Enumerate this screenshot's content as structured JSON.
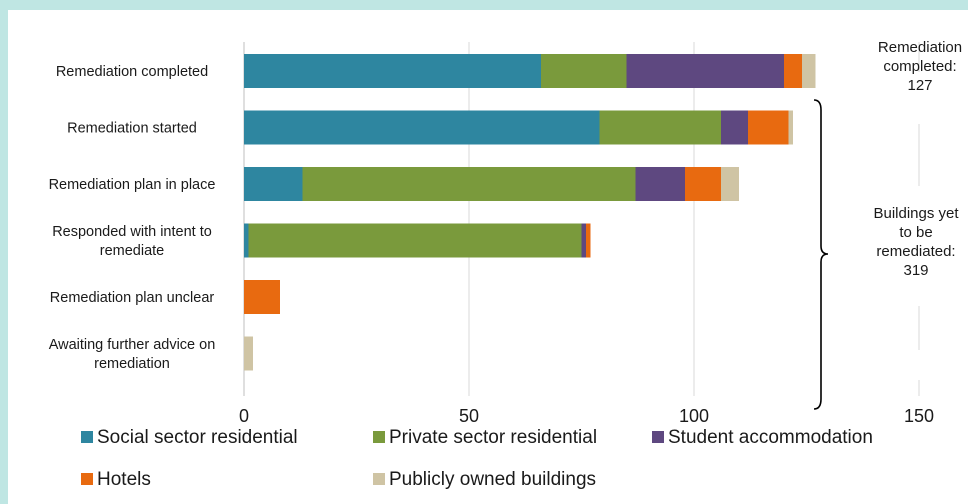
{
  "chart_data": {
    "type": "bar",
    "orientation": "horizontal",
    "stacked": true,
    "title": "",
    "xlabel": "",
    "ylabel": "",
    "xlim": [
      0,
      150
    ],
    "xticks": [
      0,
      50,
      100,
      150
    ],
    "grid": "vertical gridlines",
    "legend_position": "bottom",
    "categories": [
      [
        "Remediation completed"
      ],
      [
        "Remediation started"
      ],
      [
        "Remediation plan in place"
      ],
      [
        "Responded with intent to",
        "remediate"
      ],
      [
        "Remediation plan unclear"
      ],
      [
        "Awaiting further advice on",
        "remediation"
      ]
    ],
    "series": [
      {
        "name": "Social sector residential",
        "color": "#2e86a0",
        "values": [
          66,
          79,
          13,
          1,
          0,
          0
        ]
      },
      {
        "name": "Private sector residential",
        "color": "#7a9a3c",
        "values": [
          19,
          27,
          74,
          74,
          0,
          0
        ]
      },
      {
        "name": "Student accommodation",
        "color": "#5e4880",
        "values": [
          35,
          6,
          11,
          1,
          0,
          0
        ]
      },
      {
        "name": "Hotels",
        "color": "#e86a10",
        "values": [
          4,
          9,
          8,
          1,
          8,
          0
        ]
      },
      {
        "name": "Publicly owned buildings",
        "color": "#cfc4a4",
        "values": [
          3,
          1,
          4,
          0,
          0,
          2
        ]
      }
    ],
    "annotations": [
      {
        "lines": [
          "Remediation",
          "completed:",
          "127"
        ]
      },
      {
        "lines": [
          "Buildings yet",
          "to be",
          "remediated:",
          "319"
        ]
      }
    ]
  }
}
